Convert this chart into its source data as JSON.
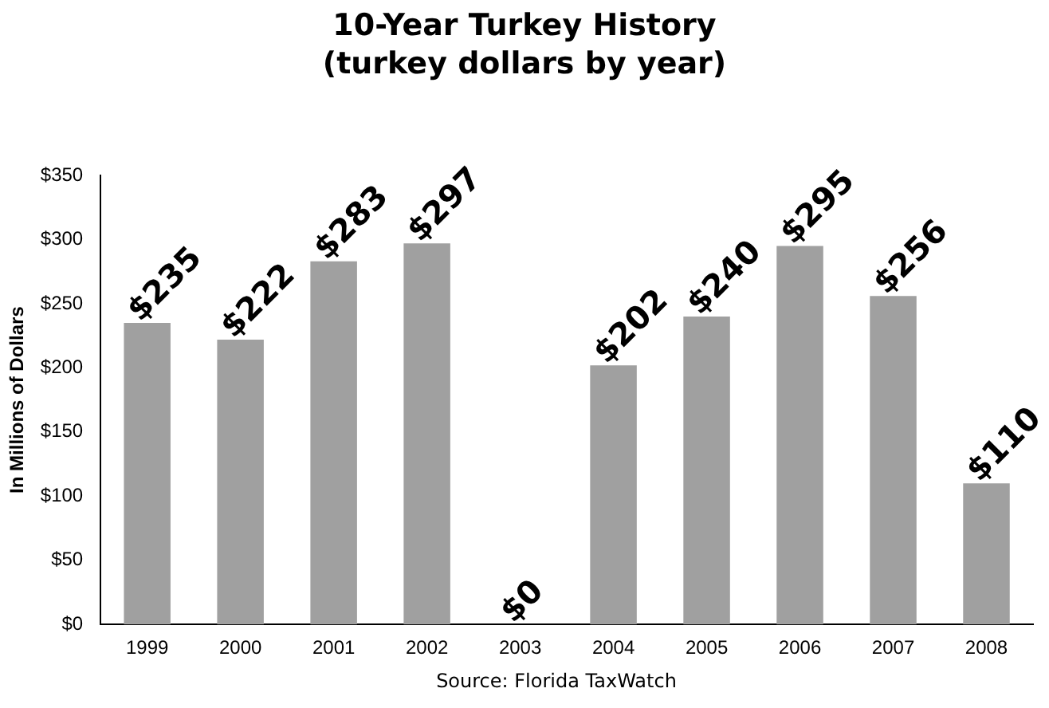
{
  "chart_data": {
    "type": "bar",
    "title": "10-Year Turkey History\n(turkey dollars by year)",
    "ylabel": "In Millions of Dollars",
    "categories": [
      "1999",
      "2000",
      "2001",
      "2002",
      "2003",
      "2004",
      "2005",
      "2006",
      "2007",
      "2008"
    ],
    "values": [
      235,
      222,
      283,
      297,
      0,
      202,
      240,
      295,
      256,
      110
    ],
    "value_labels": [
      "$235",
      "$222",
      "$283",
      "$297",
      "$0",
      "$202",
      "$240",
      "$295",
      "$256",
      "$110"
    ],
    "color": "#a0a0a0",
    "ylim": [
      0,
      350
    ],
    "yticks": [
      {
        "value": 0,
        "label": "$0"
      },
      {
        "value": 50,
        "label": "$50"
      },
      {
        "value": 100,
        "label": "$100"
      },
      {
        "value": 150,
        "label": "$150"
      },
      {
        "value": 200,
        "label": "$200"
      },
      {
        "value": 250,
        "label": "$250"
      },
      {
        "value": 300,
        "label": "$300"
      },
      {
        "value": 350,
        "label": "$350"
      }
    ],
    "grid": false,
    "legend": false,
    "annotations": [
      "Source: Florida TaxWatch"
    ]
  }
}
